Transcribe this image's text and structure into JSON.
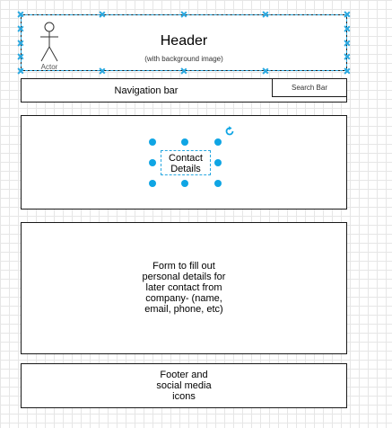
{
  "header": {
    "title": "Header",
    "subtitle": "(with background image)",
    "actor_label": "Actor",
    "icon": "actor-stick-figure"
  },
  "navigation": {
    "label": "Navigation bar",
    "search_label": "Search Bar"
  },
  "contact": {
    "label": "Contact\nDetails",
    "rotate_icon": "rotate-icon"
  },
  "form": {
    "label": "Form to fill out\npersonal details for\nlater contact from\ncompany- (name,\nemail, phone, etc)"
  },
  "footer": {
    "label": "Footer and\nsocial media\nicons"
  },
  "colors": {
    "selection": "#29a8e0",
    "handle": "#0fa5e4",
    "border": "#1a1a1a",
    "grid": "#e6e6e6"
  }
}
